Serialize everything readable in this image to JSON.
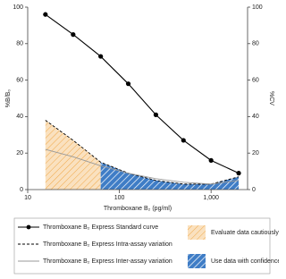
{
  "chart_data": {
    "type": "line",
    "xlabel": "Thromboxane B₂ (pg/ml)",
    "ylabel": "%B/B₀",
    "y2label": "%CV",
    "xscale": "log",
    "xlim": [
      10,
      2500
    ],
    "xticks": [
      10,
      100,
      {
        "value": 1000,
        "label": "1,000"
      }
    ],
    "ylim": [
      0,
      100
    ],
    "yticks": [
      0,
      20,
      40,
      60,
      80,
      100
    ],
    "y2lim": [
      0,
      100
    ],
    "y2ticks": [
      0,
      20,
      40,
      60,
      80,
      100
    ],
    "x": [
      15.6,
      31.3,
      62.5,
      125,
      250,
      500,
      1000,
      2000
    ],
    "series": [
      {
        "name": "Thromboxane B₂ Express Standard curve",
        "color": "#000000",
        "line_style": "solid",
        "marker": "circle",
        "values": [
          96,
          85,
          73,
          58,
          41,
          27,
          16,
          9
        ]
      },
      {
        "name": "Thromboxane B₂ Express Intra-assay variation",
        "color": "#000000",
        "line_style": "dashed",
        "axis": "y2",
        "values": [
          38,
          27,
          15,
          9,
          5,
          3,
          3,
          7
        ]
      },
      {
        "name": "Thromboxane B₂ Express Inter-assay variation",
        "color": "#999999",
        "line_style": "solid",
        "axis": "y2",
        "values": [
          22,
          18,
          13,
          9,
          6,
          4,
          3,
          5
        ]
      }
    ],
    "shaded_regions": [
      {
        "label": "Evaluate data cautiously",
        "color": "#f0a848",
        "x": [
          15.6,
          62.5
        ]
      },
      {
        "label": "Use data with confidence",
        "color": "#2a6fc0",
        "x": [
          62.5,
          2000
        ]
      }
    ]
  }
}
